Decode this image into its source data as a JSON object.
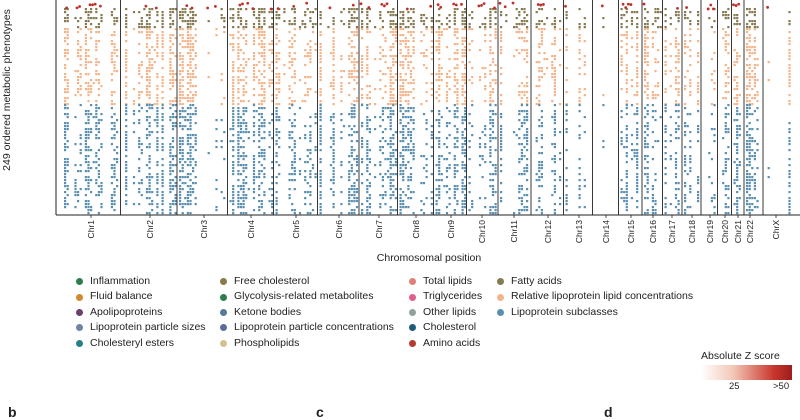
{
  "chart_data": {
    "type": "scatter",
    "title": "",
    "ylabel": "249 ordered metabolic phenotypes",
    "xlabel": "Chromosomal position",
    "x_categories": [
      "Chr1",
      "Chr2",
      "Chr3",
      "Chr4",
      "Chr5",
      "Chr6",
      "Chr7",
      "Chr8",
      "Chr9",
      "Chr10",
      "Chr11",
      "Chr12",
      "Chr13",
      "Chr14",
      "Chr15",
      "Chr16",
      "Chr17",
      "Chr18",
      "Chr19",
      "Chr20",
      "Chr21",
      "Chr22",
      "ChrX"
    ],
    "series": [
      {
        "name": "Inflammation",
        "color": "#2e7d4f"
      },
      {
        "name": "Fluid balance",
        "color": "#d0892f"
      },
      {
        "name": "Apolipoproteins",
        "color": "#6b3f6e"
      },
      {
        "name": "Lipoprotein particle sizes",
        "color": "#6f84a6"
      },
      {
        "name": "Cholesteryl esters",
        "color": "#2a7f86"
      },
      {
        "name": "Free cholesterol",
        "color": "#8a7a4a"
      },
      {
        "name": "Glycolysis-related metabolites",
        "color": "#2e7d4f"
      },
      {
        "name": "Ketone bodies",
        "color": "#567a9a"
      },
      {
        "name": "Lipoprotein particle concentrations",
        "color": "#5b6d9b"
      },
      {
        "name": "Phospholipids",
        "color": "#d5c08f"
      },
      {
        "name": "Total lipids",
        "color": "#e07f78"
      },
      {
        "name": "Triglycerides",
        "color": "#e0608a"
      },
      {
        "name": "Other lipids",
        "color": "#8fa39b"
      },
      {
        "name": "Cholesterol",
        "color": "#1f5a78"
      },
      {
        "name": "Amino acids",
        "color": "#b23a2e"
      },
      {
        "name": "Fatty acids",
        "color": "#857a52"
      },
      {
        "name": "Relative lipoprotein lipid concentrations",
        "color": "#f2b48a"
      },
      {
        "name": "Lipoprotein subclasses",
        "color": "#5b8fb0"
      }
    ],
    "colorbar": {
      "title": "Absolute Z score",
      "tick_labels": [
        "25",
        ">50"
      ]
    },
    "grid": false
  },
  "panel_labels": [
    "b",
    "c",
    "d"
  ]
}
